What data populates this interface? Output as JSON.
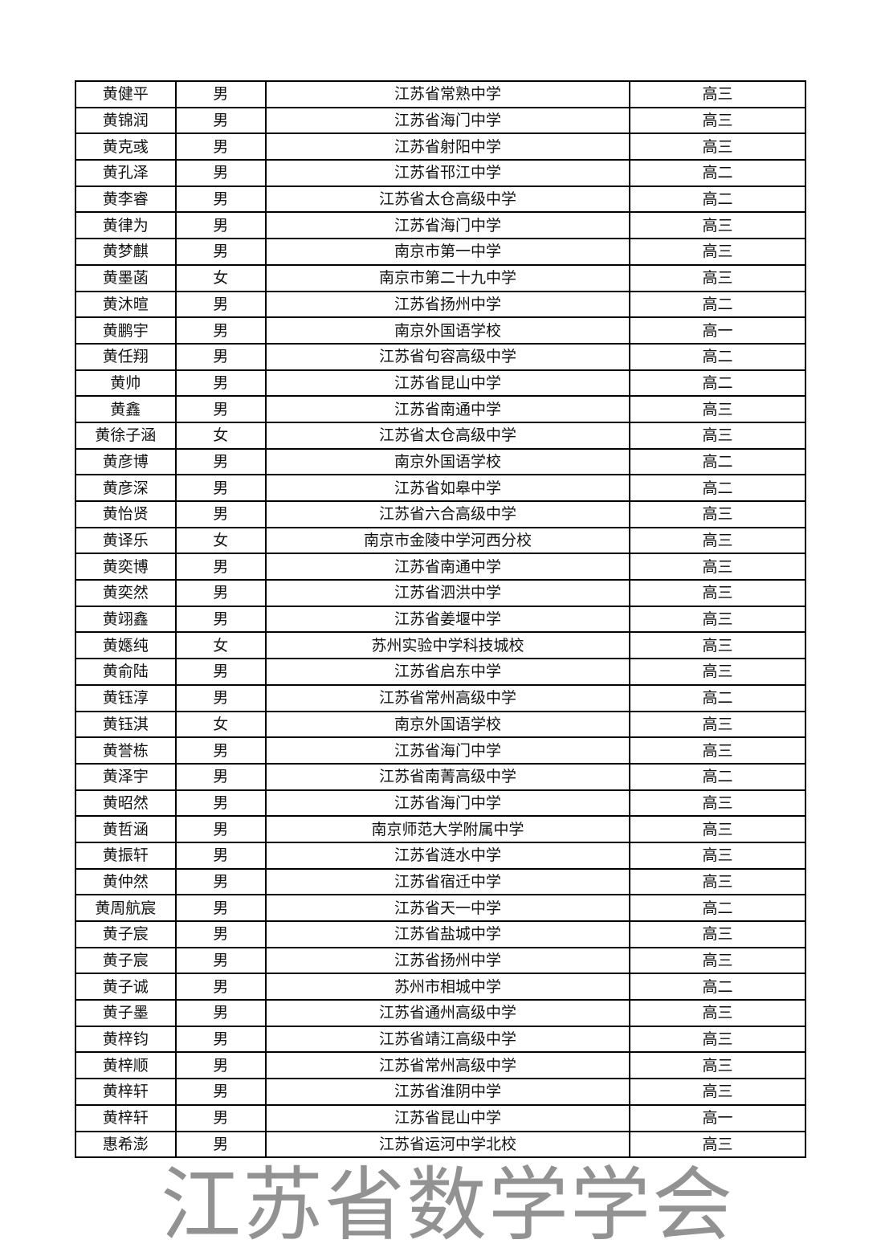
{
  "watermark": "江苏省数学学会",
  "rows": [
    [
      "黄健平",
      "男",
      "江苏省常熟中学",
      "高三"
    ],
    [
      "黄锦润",
      "男",
      "江苏省海门中学",
      "高三"
    ],
    [
      "黄克彧",
      "男",
      "江苏省射阳中学",
      "高三"
    ],
    [
      "黄孔泽",
      "男",
      "江苏省邗江中学",
      "高二"
    ],
    [
      "黄李睿",
      "男",
      "江苏省太仓高级中学",
      "高二"
    ],
    [
      "黄律为",
      "男",
      "江苏省海门中学",
      "高三"
    ],
    [
      "黄梦麒",
      "男",
      "南京市第一中学",
      "高三"
    ],
    [
      "黄墨菡",
      "女",
      "南京市第二十九中学",
      "高三"
    ],
    [
      "黄沐暄",
      "男",
      "江苏省扬州中学",
      "高二"
    ],
    [
      "黄鹏宇",
      "男",
      "南京外国语学校",
      "高一"
    ],
    [
      "黄任翔",
      "男",
      "江苏省句容高级中学",
      "高二"
    ],
    [
      "黄帅",
      "男",
      "江苏省昆山中学",
      "高二"
    ],
    [
      "黄鑫",
      "男",
      "江苏省南通中学",
      "高三"
    ],
    [
      "黄徐子涵",
      "女",
      "江苏省太仓高级中学",
      "高三"
    ],
    [
      "黄彦博",
      "男",
      "南京外国语学校",
      "高二"
    ],
    [
      "黄彦深",
      "男",
      "江苏省如皋中学",
      "高二"
    ],
    [
      "黄怡贤",
      "男",
      "江苏省六合高级中学",
      "高三"
    ],
    [
      "黄译乐",
      "女",
      "南京市金陵中学河西分校",
      "高三"
    ],
    [
      "黄奕博",
      "男",
      "江苏省南通中学",
      "高三"
    ],
    [
      "黄奕然",
      "男",
      "江苏省泗洪中学",
      "高三"
    ],
    [
      "黄翊鑫",
      "男",
      "江苏省姜堰中学",
      "高三"
    ],
    [
      "黄嫕纯",
      "女",
      "苏州实验中学科技城校",
      "高三"
    ],
    [
      "黄俞陆",
      "男",
      "江苏省启东中学",
      "高三"
    ],
    [
      "黄钰淳",
      "男",
      "江苏省常州高级中学",
      "高二"
    ],
    [
      "黄钰淇",
      "女",
      "南京外国语学校",
      "高三"
    ],
    [
      "黄誉栋",
      "男",
      "江苏省海门中学",
      "高三"
    ],
    [
      "黄泽宇",
      "男",
      "江苏省南菁高级中学",
      "高二"
    ],
    [
      "黄昭然",
      "男",
      "江苏省海门中学",
      "高三"
    ],
    [
      "黄哲涵",
      "男",
      "南京师范大学附属中学",
      "高三"
    ],
    [
      "黄振轩",
      "男",
      "江苏省涟水中学",
      "高三"
    ],
    [
      "黄仲然",
      "男",
      "江苏省宿迁中学",
      "高三"
    ],
    [
      "黄周航宸",
      "男",
      "江苏省天一中学",
      "高二"
    ],
    [
      "黄子宸",
      "男",
      "江苏省盐城中学",
      "高三"
    ],
    [
      "黄子宸",
      "男",
      "江苏省扬州中学",
      "高三"
    ],
    [
      "黄子诚",
      "男",
      "苏州市相城中学",
      "高二"
    ],
    [
      "黄子墨",
      "男",
      "江苏省通州高级中学",
      "高三"
    ],
    [
      "黄梓钧",
      "男",
      "江苏省靖江高级中学",
      "高三"
    ],
    [
      "黄梓顺",
      "男",
      "江苏省常州高级中学",
      "高三"
    ],
    [
      "黄梓轩",
      "男",
      "江苏省淮阴中学",
      "高三"
    ],
    [
      "黄梓轩",
      "男",
      "江苏省昆山中学",
      "高一"
    ],
    [
      "惠希澎",
      "男",
      "江苏省运河中学北校",
      "高三"
    ]
  ]
}
